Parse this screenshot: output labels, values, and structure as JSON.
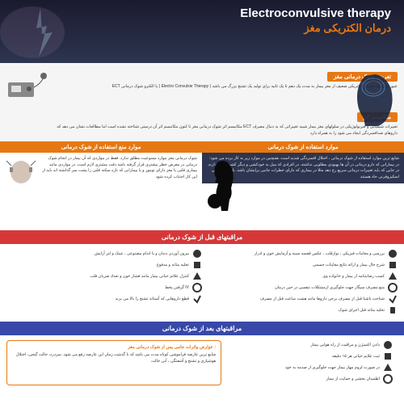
{
  "header": {
    "title_en": "Electroconvulsive therapy",
    "title_fa": "درمان الکتریکی مغز"
  },
  "sec1": {
    "tag": "تعریف شوک درمانی مغز",
    "body": "ECT یا الکترو شوک درمانی ( Electro Convulsie Therapy ) عبور دادن یک جریان الکتریکی ضعیف از مغز بیمار به مدت یک دهم تا یک ثانیه برای تولید یک تشنج بزرگ می باشد"
  },
  "sec2": {
    "tag": "مکانیسم اثر",
    "body": "مکانیسم اثر شوک درمانی مغز تا کنون مکانیسم اثر آن درستی شناخته نشده است اما مطالعات نشان می دهد که ECT تغییرات شیمیایی و فیزیولوژیکی در سلولهای مغز بیمار شبیه تغییراتی که به دنبال مصرف داروهای ضدافسردگی ایجاد می شود را به همراه دارد"
  },
  "indications": {
    "right_header": "موارد استفاده از شوک درمانی",
    "right_body": "شایع ترین موارد استفاده از شوک درمانی ، اختلال افسردگی شدید است. همچنین در موارد زیر به کار برده می شود: در بیمارانی که دارو درمانی در آن ها بهبودی مطلوبی نداشته. در افرادی که میل به خودکشی و دیگر کشی شدید دارند. در جایی که باید تغییرات درمانی سریع رخ دهد مثلا در بیماری که دارای خطرات جانبی برایشان باشد. بارداری ملاکی اسکیزوفرنی حاد هستند",
    "left_header": "موارد منع استفاده از شوک درمانی",
    "left_body": "شوک درمانی مغز موارد ممنوعیت مطلق ندارد. فقط در مواردی که آن بیمار در انجام شوک درمانی در معرض خطر بیشتری قرار گرفته باشد دقت بیشتری لازم است. در مواردی مانند بیماری قلبی یا مغز دارای تومور و یا بیمارانی که تازه سکته قلبی را پشت سر گذاشته اند باید از این کار اجتناب کرده شود"
  },
  "care_before": {
    "header": "مراقبتهای قبل از شوک درمانی",
    "right_items": [
      "بررسی و معاینات فیزیکی ، نوارقلب ، عکس قفسه سینه و آزمایش خون و ادرار",
      "شرح حال بیمار و ارائه نتایج معاینات جسمی",
      "کسب رضایتنامه از بیمار و خانواده وی",
      "منع مصرف سیگار جهت جلوگیری ازمشکلات تنفسی در حین درمان",
      "شناخت ناشتا قبل از مصرف برخی داروها مانند هشت ساعت قبل از مصرف",
      "تخلیه مثانه قبل اجرای شوک"
    ],
    "left_items": [
      "بیرون آوردن دندان و یا اندام مصنوعی ، عینک و لنز آرایش",
      "تخلیه مثانه و مدفوع",
      "کنترل علائم حیاتی بیمار مانند فشار خون و تعداد ضربان قلب",
      "گرفتن پخط IV",
      "قطع داروهایی که آستانه تشنج را بالا می برند"
    ]
  },
  "care_after": {
    "header": "مراقبتهای بعد از شوک درمانی",
    "right_items": [
      "دادن اکسیژن و مراقبت از راه هوایی بیمار",
      "ثبت علایم حیاتی هر ۱۵ دقیقه",
      "در صورت لزوم مهار بیمار جهت جلوگیری از صدمه به خود",
      "اطمینان بخشی و حمایت از بیمار"
    ],
    "left_box_header": "عوارض واثرات جانبی پس از شوک درمانی مغز :",
    "left_box_body": "شایع ترین عارضه فراموشی کوتاه مدت می باشد که با گذشت زمان این عارضه رفع می شود. سردرد، حالت گیجی، اختلال هوشیاری و تشنج و آشفتگی ، آبی حالت"
  },
  "colors": {
    "orange": "#e67814",
    "red": "#d63838",
    "blue": "#3848a8",
    "dark": "#2d3550"
  }
}
